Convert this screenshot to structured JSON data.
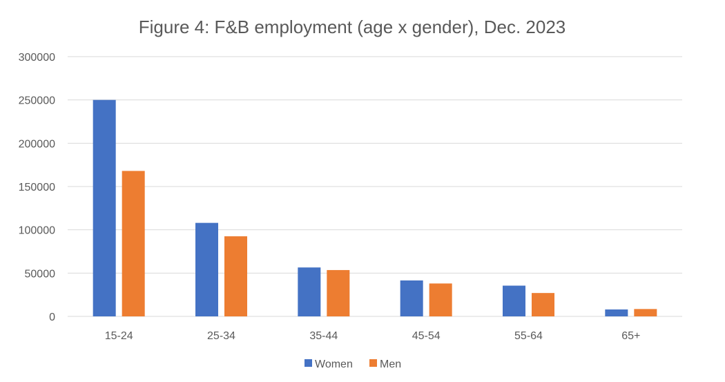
{
  "chart_data": {
    "type": "bar",
    "title": "Figure 4: F&B employment (age x gender), Dec. 2023",
    "xlabel": "",
    "ylabel": "",
    "categories": [
      "15-24",
      "25-34",
      "35-44",
      "45-54",
      "55-64",
      "65+"
    ],
    "series": [
      {
        "name": "Women",
        "color": "#4472c4",
        "values": [
          250000,
          108000,
          56500,
          41500,
          35500,
          8000
        ]
      },
      {
        "name": "Men",
        "color": "#ed7d31",
        "values": [
          168000,
          92500,
          53500,
          38000,
          27000,
          8500
        ]
      }
    ],
    "ylim": [
      0,
      300000
    ],
    "yticks": [
      "0",
      "50000",
      "100000",
      "150000",
      "200000",
      "250000",
      "300000"
    ],
    "grid": true,
    "legend_position": "bottom"
  }
}
